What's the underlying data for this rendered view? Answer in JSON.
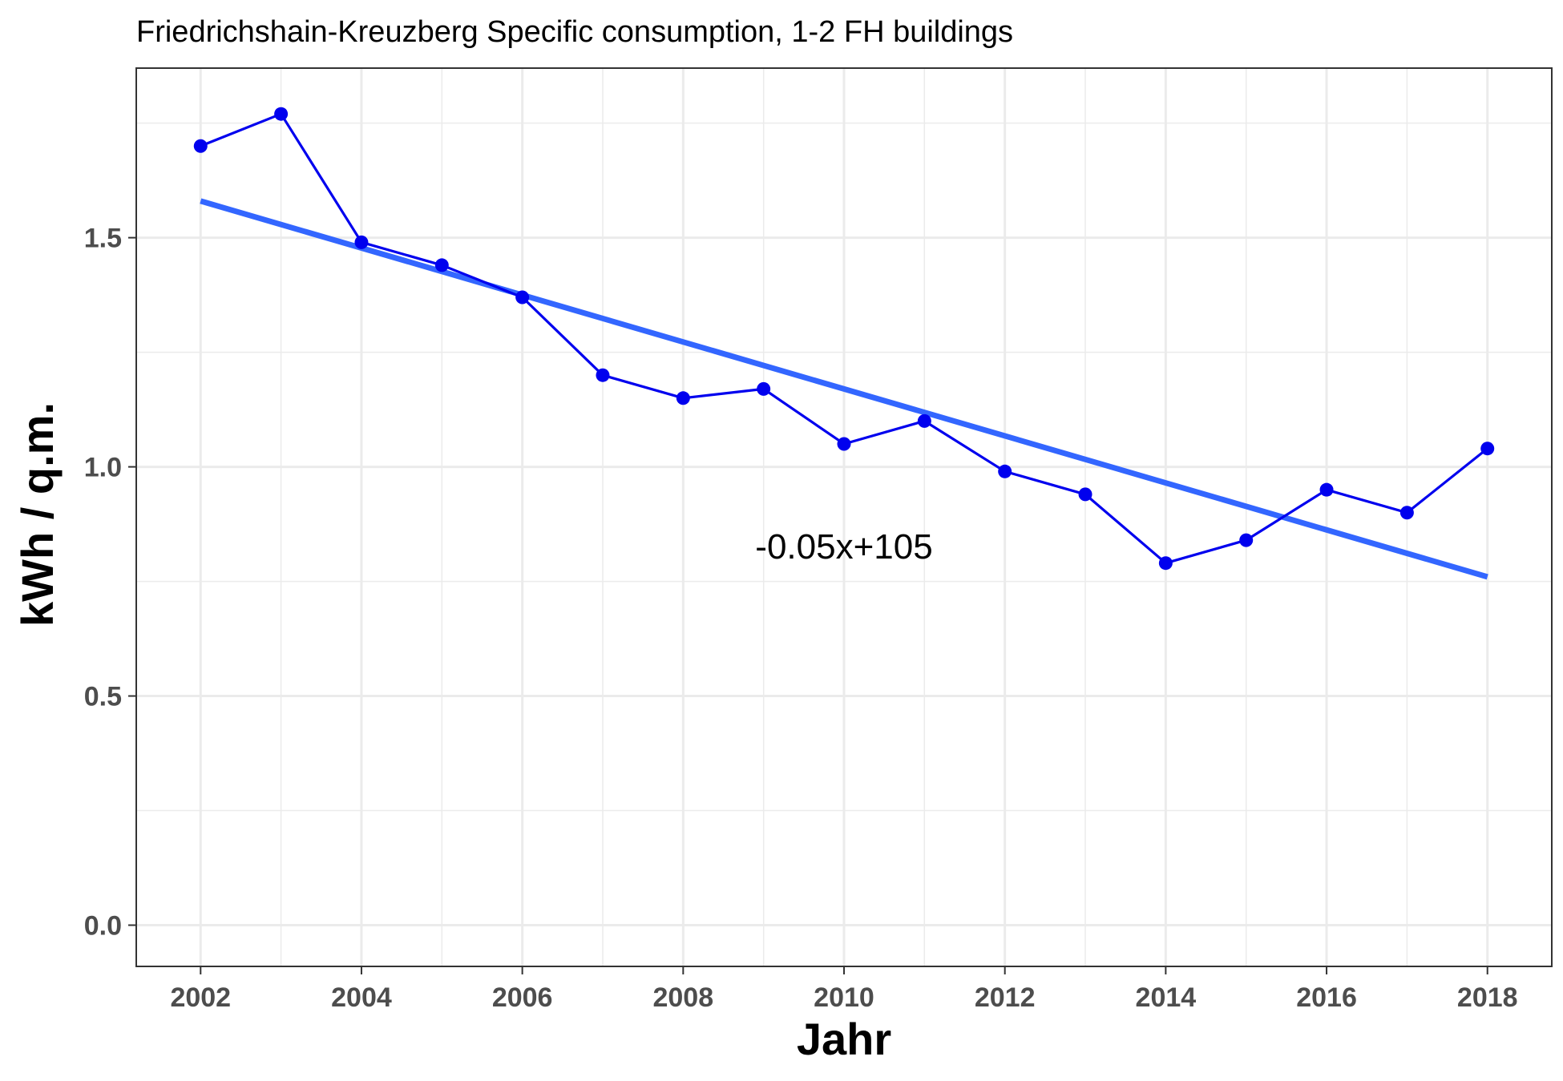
{
  "chart_data": {
    "type": "line",
    "title": "Friedrichshain-Kreuzberg Specific consumption, 1-2 FH buildings",
    "xlabel": "Jahr",
    "ylabel": "kWh / q.m.",
    "x": [
      2002,
      2003,
      2004,
      2005,
      2006,
      2007,
      2008,
      2009,
      2010,
      2011,
      2012,
      2013,
      2014,
      2015,
      2016,
      2017,
      2018
    ],
    "series": [
      {
        "values": [
          1.7,
          1.77,
          1.49,
          1.44,
          1.37,
          1.2,
          1.15,
          1.17,
          1.05,
          1.1,
          0.99,
          0.94,
          0.79,
          0.84,
          0.95,
          0.9,
          1.04
        ],
        "color": "#0000ee"
      }
    ],
    "trend_line": {
      "x": [
        2002,
        2018
      ],
      "y": [
        1.58,
        0.76
      ],
      "color": "#3366ff"
    },
    "annotation": "-0.05x+105",
    "annotation_at": {
      "x": 2010,
      "y": 0.8
    },
    "xlim": [
      2001.2,
      2018.8
    ],
    "ylim": [
      -0.09,
      1.87
    ],
    "x_ticks": [
      2002,
      2004,
      2006,
      2008,
      2010,
      2012,
      2014,
      2016,
      2018
    ],
    "x_tick_labels": [
      "2002",
      "2004",
      "2006",
      "2008",
      "2010",
      "2012",
      "2014",
      "2016",
      "2018"
    ],
    "y_ticks": [
      0.0,
      0.5,
      1.0,
      1.5
    ],
    "y_tick_labels": [
      "0.0",
      "0.5",
      "1.0",
      "1.5"
    ],
    "grid": true,
    "legend": "none"
  }
}
